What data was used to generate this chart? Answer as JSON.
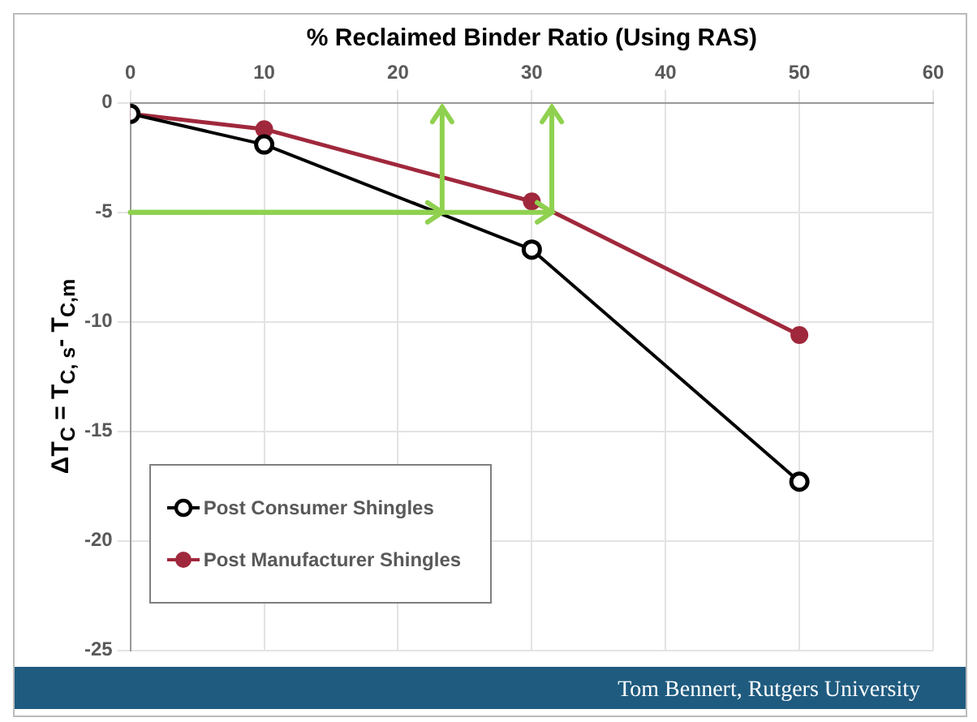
{
  "chart_data": {
    "type": "line",
    "xlabel": "% Reclaimed Binder Ratio (Using RAS)",
    "ylabel": "ΔT$_{C}$ = T$_{C, s}$- T$_{C,m}$",
    "x": [
      0,
      10,
      30,
      50
    ],
    "series": [
      {
        "name": "Post Consumer Shingles",
        "color": "#000000",
        "values": [
          -0.5,
          -1.9,
          -6.7,
          -17.3
        ]
      },
      {
        "name": "Post Manufacturer Shingles",
        "color": "#a0283c",
        "values": [
          -0.5,
          -1.2,
          -4.5,
          -10.6
        ]
      }
    ],
    "xlim": [
      0,
      60
    ],
    "xticks": [
      0,
      10,
      20,
      30,
      40,
      50,
      60
    ],
    "ylim": [
      -25,
      0
    ],
    "yticks": [
      -25,
      -20,
      -15,
      -10,
      -5,
      0
    ],
    "grid": true,
    "legend": "bottom left",
    "marker": "circle",
    "line_style": "solid",
    "annotations": [
      "Tom Bennert, Rutgers University"
    ]
  }
}
